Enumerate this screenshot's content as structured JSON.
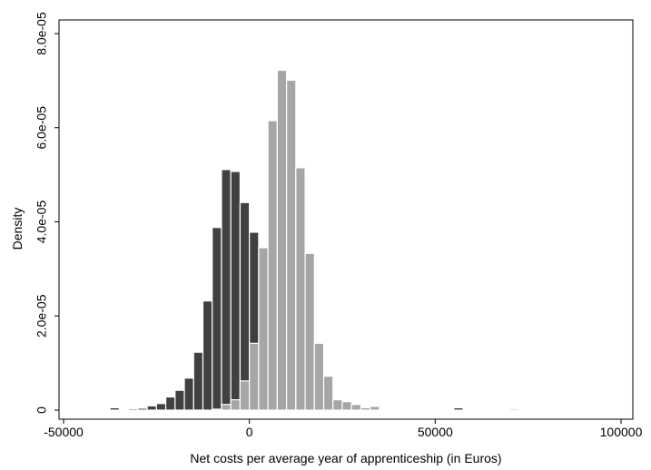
{
  "chart_data": {
    "type": "bar",
    "subtype": "overlaid-histogram",
    "title": "",
    "xlabel": "Net costs per average year of apprenticeship (in Euros)",
    "ylabel": "Density",
    "xlim": [
      -50000,
      100000
    ],
    "ylim": [
      0,
      8e-05
    ],
    "grid": false,
    "bin_width": 2500,
    "x_ticks": [
      {
        "value": -50000,
        "label": "-50000"
      },
      {
        "value": 0,
        "label": "0"
      },
      {
        "value": 50000,
        "label": "50000"
      },
      {
        "value": 100000,
        "label": "100000"
      }
    ],
    "y_ticks": [
      {
        "value": 0,
        "label": "0"
      },
      {
        "value": 2e-05,
        "label": "2.0e-05"
      },
      {
        "value": 4e-05,
        "label": "4.0e-05"
      },
      {
        "value": 6e-05,
        "label": "6.0e-05"
      },
      {
        "value": 8e-05,
        "label": "8.0e-05"
      }
    ],
    "series": [
      {
        "color": "#404040",
        "x": [
          -37500,
          -32500,
          -30000,
          -27500,
          -25000,
          -22500,
          -20000,
          -17500,
          -15000,
          -12500,
          -10000,
          -7500,
          -5000,
          -2500,
          0,
          2500,
          27500,
          55000
        ],
        "values": [
          5e-07,
          3e-07,
          4e-07,
          9e-07,
          1.4e-06,
          2.8e-06,
          4.2e-06,
          6.8e-06,
          1.23e-05,
          2.32e-05,
          3.88e-05,
          5.11e-05,
          5.07e-05,
          4.41e-05,
          3.78e-05,
          2.2e-06,
          6e-07,
          5e-07
        ]
      },
      {
        "color": "#a6a6a6",
        "x": [
          -10000,
          -7500,
          -5000,
          -2500,
          0,
          2500,
          5000,
          7500,
          10000,
          12500,
          15000,
          17500,
          20000,
          22500,
          25000,
          27500,
          30000,
          32500,
          70000
        ],
        "values": [
          2e-07,
          1.2e-06,
          2.2e-06,
          6.2e-06,
          1.42e-05,
          3.45e-05,
          6.15e-05,
          7.22e-05,
          7.01e-05,
          5.15e-05,
          3.33e-05,
          1.42e-05,
          7.2e-06,
          2.2e-06,
          1.8e-06,
          1.2e-06,
          5e-07,
          8e-07,
          3e-07
        ]
      }
    ]
  }
}
